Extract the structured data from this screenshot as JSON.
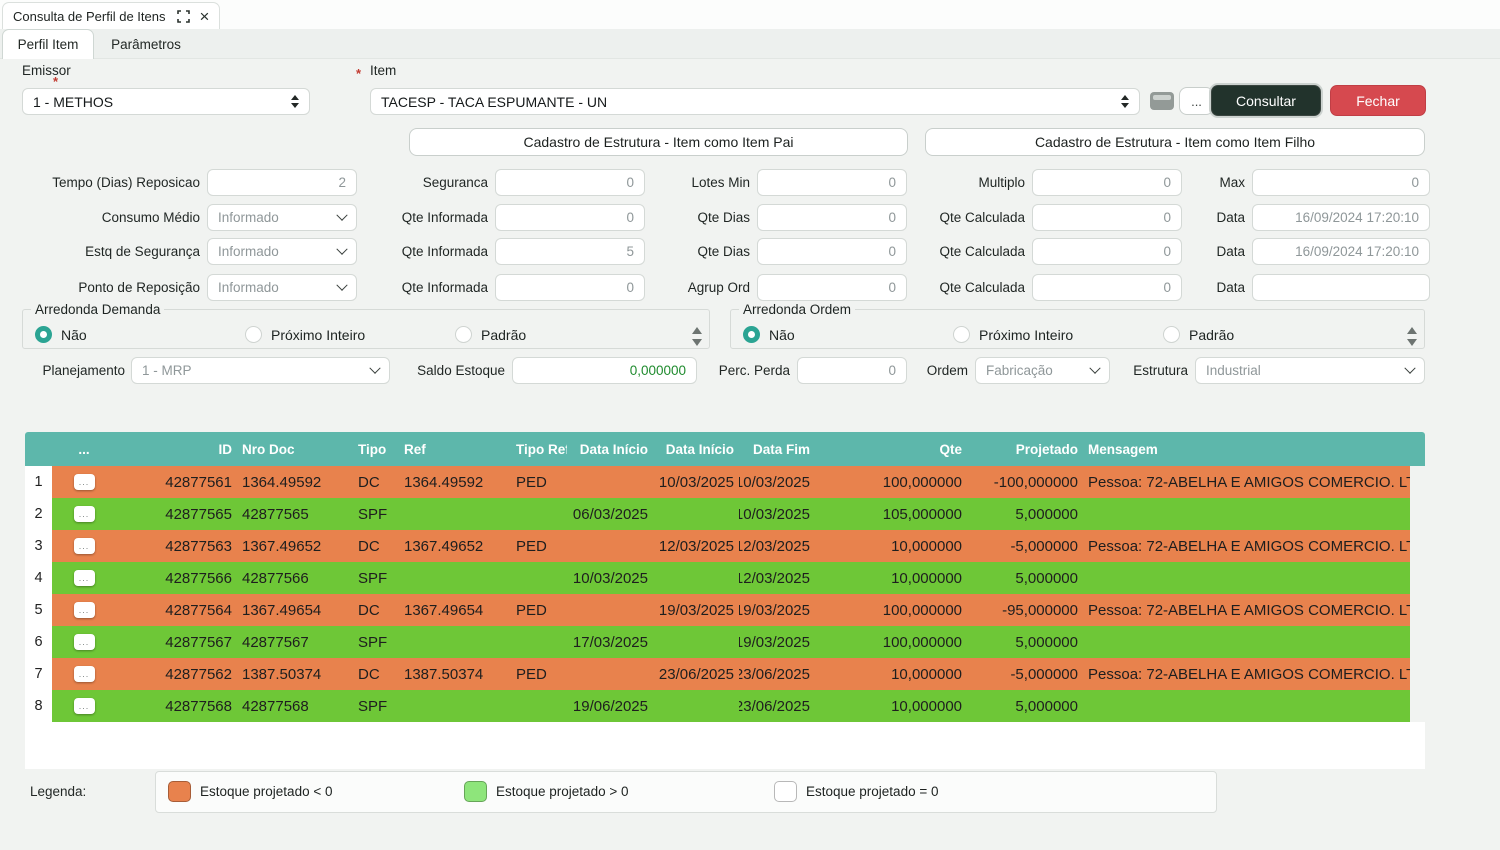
{
  "colors": {
    "header_teal": "#5db7ab",
    "row_negative": "#e8824d",
    "row_positive": "#6ec737",
    "consultar_bg": "#22332c",
    "fechar_bg": "#d6494f",
    "radio_selected": "#2ba493",
    "saldo_text": "#1f8b2e",
    "legend_negative": "#e8824d",
    "legend_positive": "#8ee57b",
    "legend_zero": "#ffffff"
  },
  "window": {
    "title": "Consulta de Perfil de Itens",
    "close_glyph": "×"
  },
  "tabs": [
    {
      "label": "Perfil Item",
      "active": true
    },
    {
      "label": "Parâmetros",
      "active": false
    }
  ],
  "fields": {
    "required_marker": "*",
    "emissor_label": "Emissor",
    "emissor_value": "1 - METHOS",
    "item_label": "Item",
    "item_value": "TACESP - TACA ESPUMANTE - UN",
    "more_button_label": "...",
    "consultar_label": "Consultar",
    "fechar_label": "Fechar"
  },
  "structure_buttons": {
    "pai_label": "Cadastro de Estrutura - Item como Item Pai",
    "filho_label": "Cadastro de Estrutura - Item como Item Filho"
  },
  "form": {
    "rows": [
      {
        "cells": [
          {
            "label": "Tempo (Dias) Reposicao",
            "value": "2",
            "type": "input"
          },
          {
            "label": "Seguranca",
            "value": "0",
            "type": "input"
          },
          {
            "label": "Lotes Min",
            "value": "0",
            "type": "input"
          },
          {
            "label": "Multiplo",
            "value": "0",
            "type": "input"
          },
          {
            "label": "Max",
            "value": "0",
            "type": "input"
          }
        ]
      },
      {
        "cells": [
          {
            "label": "Consumo Médio",
            "value": "Informado",
            "type": "select"
          },
          {
            "label": "Qte Informada",
            "value": "0",
            "type": "input"
          },
          {
            "label": "Qte Dias",
            "value": "0",
            "type": "input"
          },
          {
            "label": "Qte Calculada",
            "value": "0",
            "type": "input"
          },
          {
            "label": "Data",
            "value": "16/09/2024 17:20:10",
            "type": "input"
          }
        ]
      },
      {
        "cells": [
          {
            "label": "Estq de Segurança",
            "value": "Informado",
            "type": "select"
          },
          {
            "label": "Qte Informada",
            "value": "5",
            "type": "input"
          },
          {
            "label": "Qte Dias",
            "value": "0",
            "type": "input"
          },
          {
            "label": "Qte Calculada",
            "value": "0",
            "type": "input"
          },
          {
            "label": "Data",
            "value": "16/09/2024 17:20:10",
            "type": "input"
          }
        ]
      },
      {
        "cells": [
          {
            "label": "Ponto de Reposição",
            "value": "Informado",
            "type": "select"
          },
          {
            "label": "Qte Informada",
            "value": "0",
            "type": "input"
          },
          {
            "label": "Agrup Ord",
            "value": "0",
            "type": "input"
          },
          {
            "label": "Qte Calculada",
            "value": "0",
            "type": "input"
          },
          {
            "label": "Data",
            "value": "",
            "type": "input"
          }
        ]
      }
    ]
  },
  "rounding": {
    "demanda": {
      "title": "Arredonda Demanda",
      "options": [
        {
          "label": "Não",
          "selected": true
        },
        {
          "label": "Próximo Inteiro",
          "selected": false
        },
        {
          "label": "Padrão",
          "selected": false
        }
      ]
    },
    "ordem": {
      "title": "Arredonda Ordem",
      "options": [
        {
          "label": "Não",
          "selected": true
        },
        {
          "label": "Próximo Inteiro",
          "selected": false
        },
        {
          "label": "Padrão",
          "selected": false
        }
      ]
    }
  },
  "plan": {
    "planejamento_label": "Planejamento",
    "planejamento_value": "1 - MRP",
    "saldo_label": "Saldo Estoque",
    "saldo_value": "0,000000",
    "perda_label": "Perc. Perda",
    "perda_value": "0",
    "ordem_label": "Ordem",
    "ordem_value": "Fabricação",
    "estrutura_label": "Estrutura",
    "estrutura_value": "Industrial"
  },
  "table": {
    "headers": [
      "...",
      "ID",
      "Nro Doc",
      "Tipo",
      "Ref",
      "Tipo Ref",
      "Data Início",
      "Data Início",
      "Data Fim",
      "Qte",
      "Projetado",
      "Mensagem"
    ],
    "row_action_label": "...",
    "rows": [
      {
        "num": "1",
        "state": "neg",
        "id": "42877561",
        "nro_doc": "1364.49592",
        "tipo": "DC",
        "ref": "1364.49592",
        "tipo_ref": "PED",
        "data_inicio_1": "",
        "data_inicio_2": "10/03/2025",
        "data_fim": "10/03/2025",
        "qte": "100,000000",
        "projetado": "-100,000000",
        "mensagem": "Pessoa: 72-ABELHA E AMIGOS COMERCIO. LT..."
      },
      {
        "num": "2",
        "state": "pos",
        "id": "42877565",
        "nro_doc": "42877565",
        "tipo": "SPF",
        "ref": "",
        "tipo_ref": "",
        "data_inicio_1": "06/03/2025",
        "data_inicio_2": "",
        "data_fim": "10/03/2025",
        "qte": "105,000000",
        "projetado": "5,000000",
        "mensagem": ""
      },
      {
        "num": "3",
        "state": "neg",
        "id": "42877563",
        "nro_doc": "1367.49652",
        "tipo": "DC",
        "ref": "1367.49652",
        "tipo_ref": "PED",
        "data_inicio_1": "",
        "data_inicio_2": "12/03/2025",
        "data_fim": "12/03/2025",
        "qte": "10,000000",
        "projetado": "-5,000000",
        "mensagem": "Pessoa: 72-ABELHA E AMIGOS COMERCIO. LT..."
      },
      {
        "num": "4",
        "state": "pos",
        "id": "42877566",
        "nro_doc": "42877566",
        "tipo": "SPF",
        "ref": "",
        "tipo_ref": "",
        "data_inicio_1": "10/03/2025",
        "data_inicio_2": "",
        "data_fim": "12/03/2025",
        "qte": "10,000000",
        "projetado": "5,000000",
        "mensagem": ""
      },
      {
        "num": "5",
        "state": "neg",
        "id": "42877564",
        "nro_doc": "1367.49654",
        "tipo": "DC",
        "ref": "1367.49654",
        "tipo_ref": "PED",
        "data_inicio_1": "",
        "data_inicio_2": "19/03/2025",
        "data_fim": "19/03/2025",
        "qte": "100,000000",
        "projetado": "-95,000000",
        "mensagem": "Pessoa: 72-ABELHA E AMIGOS COMERCIO. LT..."
      },
      {
        "num": "6",
        "state": "pos",
        "id": "42877567",
        "nro_doc": "42877567",
        "tipo": "SPF",
        "ref": "",
        "tipo_ref": "",
        "data_inicio_1": "17/03/2025",
        "data_inicio_2": "",
        "data_fim": "19/03/2025",
        "qte": "100,000000",
        "projetado": "5,000000",
        "mensagem": ""
      },
      {
        "num": "7",
        "state": "neg",
        "id": "42877562",
        "nro_doc": "1387.50374",
        "tipo": "DC",
        "ref": "1387.50374",
        "tipo_ref": "PED",
        "data_inicio_1": "",
        "data_inicio_2": "23/06/2025",
        "data_fim": "23/06/2025",
        "qte": "10,000000",
        "projetado": "-5,000000",
        "mensagem": "Pessoa: 72-ABELHA E AMIGOS COMERCIO. LT..."
      },
      {
        "num": "8",
        "state": "pos",
        "id": "42877568",
        "nro_doc": "42877568",
        "tipo": "SPF",
        "ref": "",
        "tipo_ref": "",
        "data_inicio_1": "19/06/2025",
        "data_inicio_2": "",
        "data_fim": "23/06/2025",
        "qte": "10,000000",
        "projetado": "5,000000",
        "mensagem": ""
      }
    ]
  },
  "legend": {
    "label": "Legenda:",
    "items": [
      {
        "text": "Estoque projetado < 0",
        "color": "#e8824d"
      },
      {
        "text": "Estoque projetado > 0",
        "color": "#8ee57b"
      },
      {
        "text": "Estoque projetado = 0",
        "color": "#ffffff"
      }
    ]
  }
}
